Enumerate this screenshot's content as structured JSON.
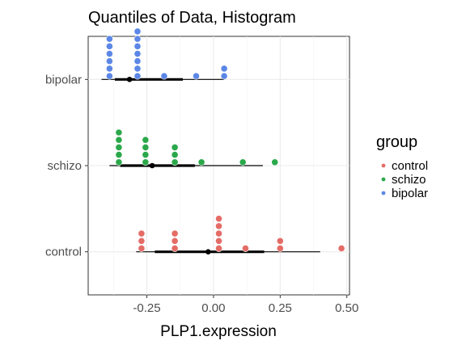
{
  "chart_data": {
    "type": "dotplot",
    "title": "Quantiles of Data, Histogram",
    "xlabel": "PLP1.expression",
    "ylabel": "",
    "xlim": [
      -0.47,
      0.51
    ],
    "x_ticks": [
      -0.25,
      0.0,
      0.25,
      0.5
    ],
    "x_tick_labels": [
      "-0.25",
      "0.00",
      "0.25",
      "0.50"
    ],
    "categories": [
      "control",
      "schizo",
      "bipolar"
    ],
    "grid": true,
    "legend": {
      "title": "group",
      "placement": "right",
      "entries": [
        "control",
        "schizo",
        "bipolar"
      ]
    },
    "series": [
      {
        "name": "control",
        "color": "#E46C67",
        "dots": [
          {
            "x": -0.27,
            "count": 3
          },
          {
            "x": -0.145,
            "count": 3
          },
          {
            "x": 0.02,
            "count": 5
          },
          {
            "x": 0.12,
            "count": 1
          },
          {
            "x": 0.25,
            "count": 2
          },
          {
            "x": 0.48,
            "count": 1
          }
        ],
        "summary": {
          "point": -0.02,
          "inner": [
            -0.22,
            0.19
          ],
          "outer": [
            -0.29,
            0.4
          ]
        }
      },
      {
        "name": "schizo",
        "color": "#2BA84A",
        "dots": [
          {
            "x": -0.355,
            "count": 5
          },
          {
            "x": -0.255,
            "count": 4
          },
          {
            "x": -0.145,
            "count": 3
          },
          {
            "x": -0.045,
            "count": 1
          },
          {
            "x": 0.11,
            "count": 1
          },
          {
            "x": 0.23,
            "count": 1
          }
        ],
        "summary": {
          "point": -0.23,
          "inner": [
            -0.35,
            -0.07
          ],
          "outer": [
            -0.39,
            0.185
          ]
        }
      },
      {
        "name": "bipolar",
        "color": "#5C87E6",
        "dots": [
          {
            "x": -0.39,
            "count": 6
          },
          {
            "x": -0.285,
            "count": 7
          },
          {
            "x": -0.185,
            "count": 1
          },
          {
            "x": -0.065,
            "count": 1
          },
          {
            "x": 0.04,
            "count": 2
          }
        ],
        "summary": {
          "point": -0.315,
          "inner": [
            -0.37,
            -0.115
          ],
          "outer": [
            -0.42,
            0.04
          ]
        }
      }
    ]
  }
}
